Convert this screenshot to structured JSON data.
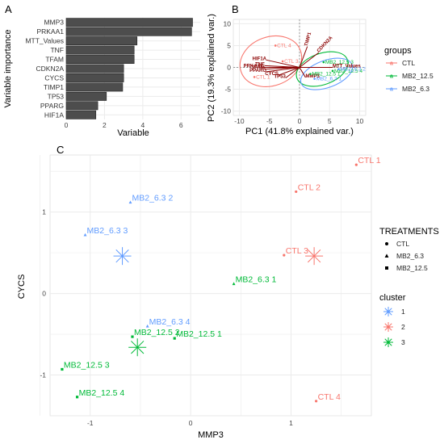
{
  "chart_data": [
    {
      "panel": "A",
      "type": "bar",
      "orientation": "horizontal",
      "xlabel": "Variable",
      "ylabel": "Variable importance",
      "xlim": [
        0,
        7
      ],
      "xticks": [
        "0",
        "2",
        "4",
        "6"
      ],
      "categories": [
        "MMP3",
        "PRKAA1",
        "MTT_Values",
        "TNF",
        "TFAM",
        "CDKN2A",
        "CYCS",
        "TIMP1",
        "TP53",
        "PPARG",
        "HIF1A"
      ],
      "values": [
        6.6,
        6.55,
        3.7,
        3.55,
        3.55,
        3.0,
        3.0,
        2.95,
        2.1,
        1.65,
        1.55
      ],
      "colors": {
        "bar": "#4d4d4d",
        "panel": "#ffffff",
        "grid": "#ebebeb"
      }
    },
    {
      "panel": "B",
      "type": "scatter",
      "subtype": "pca-biplot",
      "xlabel": "PC1 (41.8% explained var.)",
      "ylabel": "PC2 (19.3% explained var.)",
      "xlim": [
        -11,
        11
      ],
      "ylim": [
        -11,
        11
      ],
      "xticks": [
        "-10",
        "-5",
        "0",
        "5",
        "10"
      ],
      "yticks": [
        "-10",
        "-5",
        "0",
        "5",
        "10"
      ],
      "legend_title": "groups",
      "groups": [
        {
          "name": "CTL",
          "color": "#f8766d"
        },
        {
          "name": "MB2_12.5",
          "color": "#00ba38"
        },
        {
          "name": "MB2_6.3",
          "color": "#619cff"
        }
      ],
      "points": [
        {
          "label": "CTL 4",
          "x": -4,
          "y": 5,
          "group": "CTL"
        },
        {
          "label": "CTL 1",
          "x": -7.5,
          "y": -2.2,
          "group": "CTL"
        },
        {
          "label": "CTL 3",
          "x": -2.8,
          "y": 1.4,
          "group": "CTL"
        },
        {
          "label": "MB2_12.5 3",
          "x": 4,
          "y": 1.2,
          "group": "MB2_12.5"
        },
        {
          "label": "MB2_12.5 4",
          "x": 5.5,
          "y": -0.8,
          "group": "MB2_12.5"
        },
        {
          "label": "MB2_12.5 1",
          "x": 1.8,
          "y": -1.5,
          "group": "MB2_12.5"
        },
        {
          "label": "MB2_6.3 1",
          "x": 2.5,
          "y": -2.6,
          "group": "MB2_6.3"
        },
        {
          "label": "MB2_6.3 2",
          "x": 6.5,
          "y": -0.4,
          "group": "MB2_6.3"
        }
      ],
      "loadings": [
        {
          "name": "TIMP1",
          "x": 1.3,
          "y": 4.8
        },
        {
          "name": "CDKN2A",
          "x": 3.2,
          "y": 3.4
        },
        {
          "name": "MTT_Values",
          "x": 5.5,
          "y": 0
        },
        {
          "name": "HIF1A",
          "x": -5.5,
          "y": 1.7
        },
        {
          "name": "TNF",
          "x": -5.8,
          "y": 0.4
        },
        {
          "name": "PRKAA1",
          "x": -6,
          "y": 0
        },
        {
          "name": "TFAM",
          "x": -5.8,
          "y": -0.4
        },
        {
          "name": "PPARG",
          "x": -5.5,
          "y": -1.0
        },
        {
          "name": "CYCS",
          "x": -3.5,
          "y": -1.8
        },
        {
          "name": "TP53",
          "x": -2.3,
          "y": -2.4
        },
        {
          "name": "MMP3",
          "x": 1.0,
          "y": -2.3
        }
      ],
      "colors": {
        "arrow": "#8b0000",
        "panel": "#ffffff",
        "grid": "#ebebeb"
      }
    },
    {
      "panel": "C",
      "type": "scatter",
      "xlabel": "MMP3",
      "ylabel": "CYCS",
      "xlim": [
        -1.4,
        1.8
      ],
      "ylim": [
        -1.5,
        1.7
      ],
      "xticks": [
        "-1",
        "0",
        "1"
      ],
      "yticks": [
        "-1",
        "0",
        "1"
      ],
      "shape_legend_title": "TREATMENTS",
      "shape_legend": [
        {
          "label": "CTL",
          "shape": "circle"
        },
        {
          "label": "MB2_6.3",
          "shape": "triangle"
        },
        {
          "label": "MB2_12.5",
          "shape": "square"
        }
      ],
      "cluster_legend_title": "cluster",
      "clusters": [
        {
          "label": "1",
          "color": "#619cff"
        },
        {
          "label": "2",
          "color": "#f8766d"
        },
        {
          "label": "3",
          "color": "#00ba38"
        }
      ],
      "points": [
        {
          "label": "CTL 1",
          "x": 1.65,
          "y": 1.58,
          "treatment": "CTL",
          "cluster": "2"
        },
        {
          "label": "CTL 2",
          "x": 1.05,
          "y": 1.25,
          "treatment": "CTL",
          "cluster": "2"
        },
        {
          "label": "CTL 3",
          "x": 0.93,
          "y": 0.47,
          "treatment": "CTL",
          "cluster": "2"
        },
        {
          "label": "CTL 4",
          "x": 1.25,
          "y": -1.32,
          "treatment": "CTL",
          "cluster": "2"
        },
        {
          "label": "MB2_6.3 2",
          "x": -0.6,
          "y": 1.12,
          "treatment": "MB2_6.3",
          "cluster": "1"
        },
        {
          "label": "MB2_6.3 3",
          "x": -1.05,
          "y": 0.72,
          "treatment": "MB2_6.3",
          "cluster": "1"
        },
        {
          "label": "MB2_6.3 1",
          "x": 0.43,
          "y": 0.12,
          "treatment": "MB2_6.3",
          "cluster": "3"
        },
        {
          "label": "MB2_6.3 4",
          "x": -0.43,
          "y": -0.4,
          "treatment": "MB2_6.3",
          "cluster": "1"
        },
        {
          "label": "MB2_12.5 2",
          "x": -0.58,
          "y": -0.53,
          "treatment": "MB2_12.5",
          "cluster": "3"
        },
        {
          "label": "MB2_12.5 1",
          "x": -0.16,
          "y": -0.55,
          "treatment": "MB2_12.5",
          "cluster": "3"
        },
        {
          "label": "MB2_12.5 3",
          "x": -1.28,
          "y": -0.93,
          "treatment": "MB2_12.5",
          "cluster": "3"
        },
        {
          "label": "MB2_12.5 4",
          "x": -1.13,
          "y": -1.27,
          "treatment": "MB2_12.5",
          "cluster": "3"
        }
      ],
      "centroids": [
        {
          "cluster": "1",
          "x": -0.68,
          "y": 0.46
        },
        {
          "cluster": "2",
          "x": 1.23,
          "y": 0.46
        },
        {
          "cluster": "3",
          "x": -0.53,
          "y": -0.66
        }
      ],
      "colors": {
        "panel": "#ffffff",
        "grid": "#ebebeb"
      }
    }
  ]
}
